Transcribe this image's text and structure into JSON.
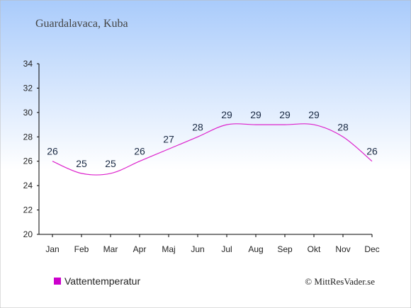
{
  "chart_data": {
    "type": "line",
    "title": "Guardalavaca, Kuba",
    "categories": [
      "Jan",
      "Feb",
      "Mar",
      "Apr",
      "Maj",
      "Jun",
      "Jul",
      "Aug",
      "Sep",
      "Okt",
      "Nov",
      "Dec"
    ],
    "series": [
      {
        "name": "Vattentemperatur",
        "values": [
          26,
          25,
          25,
          26,
          27,
          28,
          29,
          29,
          29,
          29,
          28,
          26
        ],
        "curve": [
          26,
          25,
          25,
          26,
          27,
          28,
          29,
          29,
          29,
          29,
          28,
          26
        ],
        "color": "#dd22cc"
      }
    ],
    "ylim": [
      20,
      34
    ],
    "yticks": [
      20,
      22,
      24,
      26,
      28,
      30,
      32,
      34
    ],
    "xlabel": "",
    "ylabel": "",
    "grid": false,
    "legend": "bottom-left"
  },
  "credit": "© MittResVader.se",
  "colors": {
    "background_top": "#a9cbfb",
    "background_bottom": "#ffffff",
    "axis": "#000000",
    "legend_marker": "#cc00cc"
  }
}
